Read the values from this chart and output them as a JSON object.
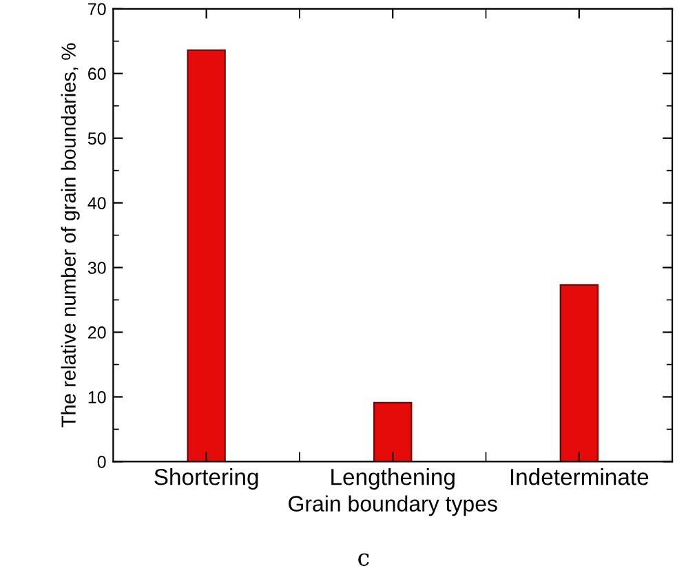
{
  "chart_data": {
    "type": "bar",
    "categories": [
      "Shortering",
      "Lengthening",
      "Indeterminate"
    ],
    "values": [
      63.6,
      9.1,
      27.3
    ],
    "color": "#e50b0b",
    "xlabel": "Grain boundary types",
    "ylabel": "The relative number of grain boundaries, %",
    "ylim": [
      0,
      70
    ],
    "yticks": [
      0,
      10,
      20,
      30,
      40,
      50,
      60,
      70
    ],
    "annotations": [
      "c"
    ],
    "grid": false
  }
}
